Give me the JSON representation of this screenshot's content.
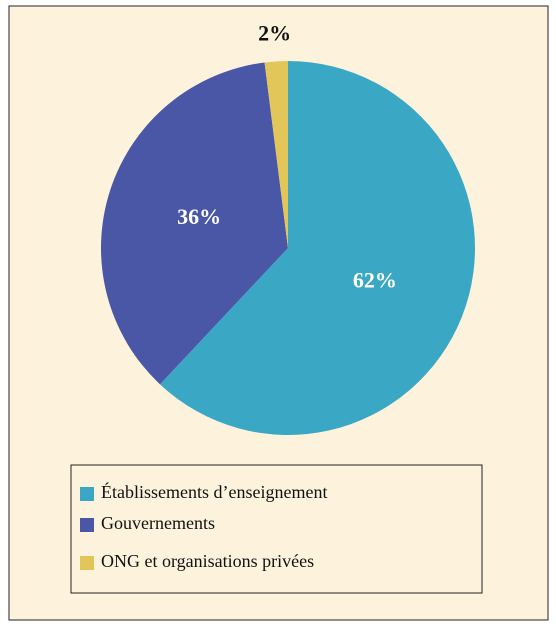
{
  "chart_data": {
    "type": "pie",
    "categories": [
      "Établissements d’enseignement",
      "Gouvernements",
      "ONG et organisations privées"
    ],
    "values": [
      62,
      36,
      2
    ],
    "value_labels": [
      "62%",
      "36%",
      "2%"
    ],
    "colors": [
      "#3aa8c4",
      "#4a57a6",
      "#e3c65a"
    ],
    "legend": "bottom"
  }
}
